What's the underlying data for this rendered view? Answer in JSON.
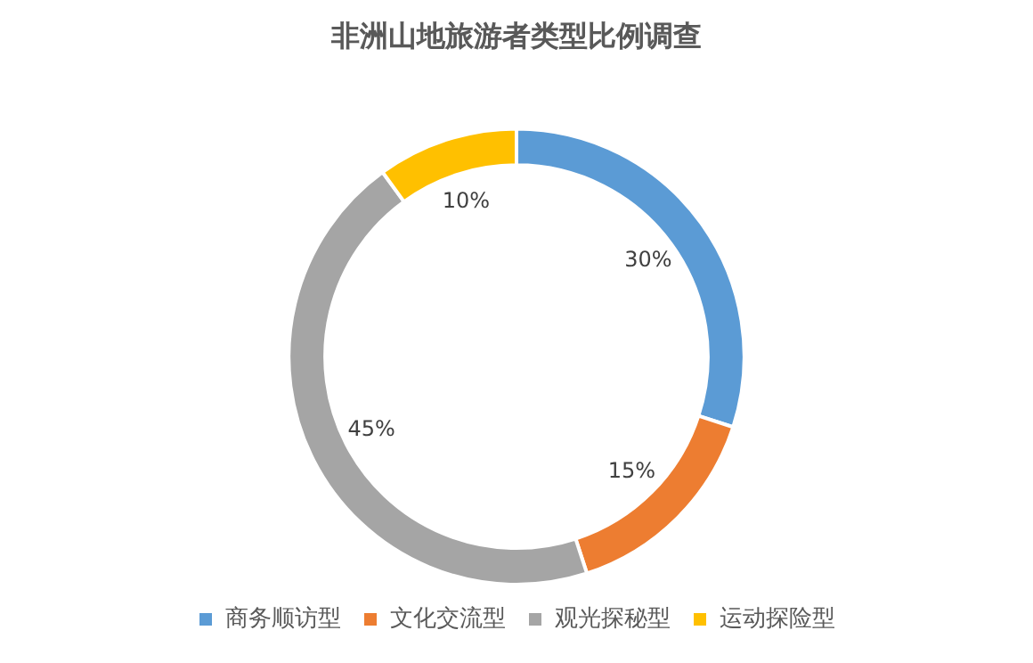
{
  "chart_data": {
    "type": "donut",
    "title": "非洲山地旅游者类型比例调查",
    "categories": [
      "商务顺访型",
      "文化交流型",
      "观光探秘型",
      "运动探险型"
    ],
    "values": [
      30,
      15,
      45,
      10
    ],
    "colors": [
      "#5b9bd5",
      "#ed7d31",
      "#a5a5a5",
      "#ffc000"
    ],
    "value_labels": [
      "30%",
      "15%",
      "45%",
      "10%"
    ],
    "legend": "bottom"
  }
}
